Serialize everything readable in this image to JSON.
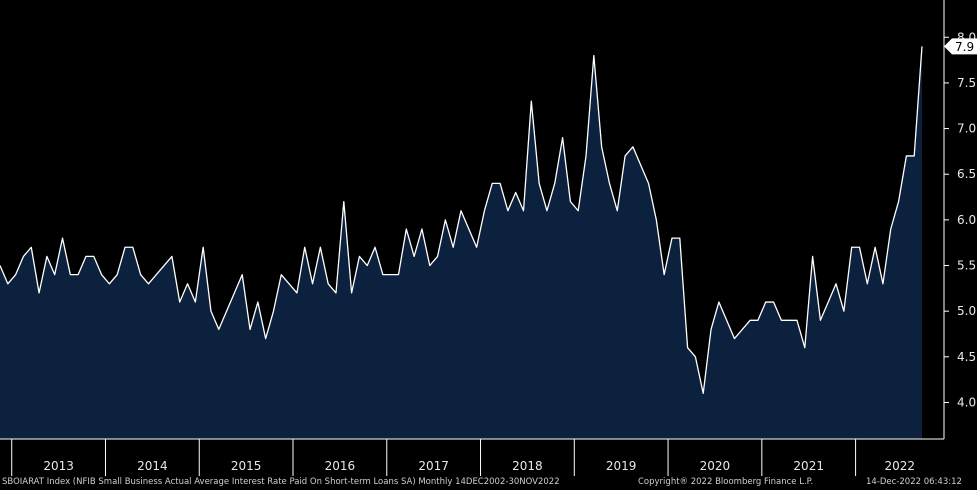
{
  "chart_data": {
    "type": "area",
    "ticker_label": "SBOIARAT Index (NFIB Small Business Actual Average Interest Rate Paid On Short-term Loans SA)  Monthly 14DEC2002-30NOV2022",
    "copyright": "Copyright® 2022 Bloomberg Finance L.P.",
    "timestamp": "14-Dec-2022 06:43:12",
    "last_value_label": "7.9",
    "ylim": [
      3.6,
      8.2
    ],
    "yticks": [
      "4.0",
      "4.5",
      "5.0",
      "5.5",
      "6.0",
      "6.5",
      "7.0",
      "7.5",
      "8.0"
    ],
    "xticks": [
      "2013",
      "2014",
      "2015",
      "2016",
      "2017",
      "2018",
      "2019",
      "2020",
      "2021",
      "2022"
    ],
    "x_start": "2012-11",
    "x_end": "2022-11",
    "values": [
      5.5,
      5.3,
      5.4,
      5.6,
      5.7,
      5.2,
      5.6,
      5.4,
      5.8,
      5.4,
      5.4,
      5.6,
      5.6,
      5.4,
      5.3,
      5.4,
      5.7,
      5.7,
      5.4,
      5.3,
      5.4,
      5.5,
      5.6,
      5.1,
      5.3,
      5.1,
      5.7,
      5.0,
      4.8,
      5.0,
      5.2,
      5.4,
      4.8,
      5.1,
      4.7,
      5.0,
      5.4,
      5.3,
      5.2,
      5.7,
      5.3,
      5.7,
      5.3,
      5.2,
      6.2,
      5.2,
      5.6,
      5.5,
      5.7,
      5.4,
      5.4,
      5.4,
      5.9,
      5.6,
      5.9,
      5.5,
      5.6,
      6.0,
      5.7,
      6.1,
      5.9,
      5.7,
      6.1,
      6.4,
      6.4,
      6.1,
      6.3,
      6.1,
      7.3,
      6.4,
      6.1,
      6.4,
      6.9,
      6.2,
      6.1,
      6.7,
      7.8,
      6.8,
      6.4,
      6.1,
      6.7,
      6.8,
      6.6,
      6.4,
      6.0,
      5.4,
      5.8,
      5.8,
      4.6,
      4.5,
      4.1,
      4.8,
      5.1,
      4.9,
      4.7,
      4.8,
      4.9,
      4.9,
      5.1,
      5.1,
      4.9,
      4.9,
      4.9,
      4.6,
      5.6,
      4.9,
      5.1,
      5.3,
      5.0,
      5.7,
      5.7,
      5.3,
      5.7,
      5.3,
      5.9,
      6.2,
      6.7,
      6.7,
      7.9
    ],
    "colors": {
      "area": "#0b213d",
      "line": "#ffffff",
      "background": "#000000",
      "axis": "#ffffff",
      "text": "#e8e8e8"
    }
  }
}
